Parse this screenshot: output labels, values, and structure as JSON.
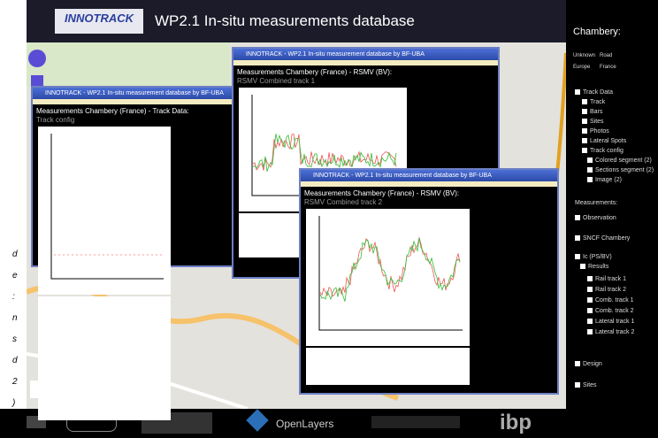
{
  "header": {
    "logo": "INNOTRACK",
    "title": "WP2.1 In-situ measurements database"
  },
  "caption_fragments": [
    "d",
    "e",
    ":",
    "n",
    "s",
    "d",
    "2",
    ")"
  ],
  "sidebar": {
    "title": "Chambery:",
    "base_layers": [
      "Unknown",
      "Road",
      "Europe",
      "France"
    ],
    "layers": [
      "Track Data",
      "Track",
      "Bars",
      "Sites",
      "Photos",
      "Lateral Spots",
      "Track config",
      "Colored segment (2)",
      "Sections segment (2)",
      "Image (2)",
      "Observation"
    ],
    "measurements_title": "Measurements:",
    "measurements": [
      "SNCF Chambery",
      "Ic (PS/BV)",
      "Results",
      "Rail track 1",
      "Rail track 2",
      "Comb. track 1",
      "Comb. track 2",
      "Lateral track 1",
      "Lateral track 2",
      "Design",
      "Sites"
    ]
  },
  "windows": [
    {
      "title": "INNOTRACK - WP2.1 In-situ measurement database by BF-UBA",
      "heading": "Measurements Chambery (France) - Track Data:",
      "subheading": "Track config"
    },
    {
      "title": "INNOTRACK - WP2.1 In-situ measurement database by BF-UBA",
      "heading": "Measurements Chambery (France) - RSMV (BV):",
      "subheading": "RSMV Combined track 1"
    },
    {
      "title": "INNOTRACK - WP2.1 In-situ measurement database by BF-UBA",
      "heading": "Measurements Chambery (France) - RSMV (BV):",
      "subheading": "RSMV Combined track 2"
    }
  ],
  "footer": {
    "openlayers": "OpenLayers",
    "ibp": "ibp"
  }
}
